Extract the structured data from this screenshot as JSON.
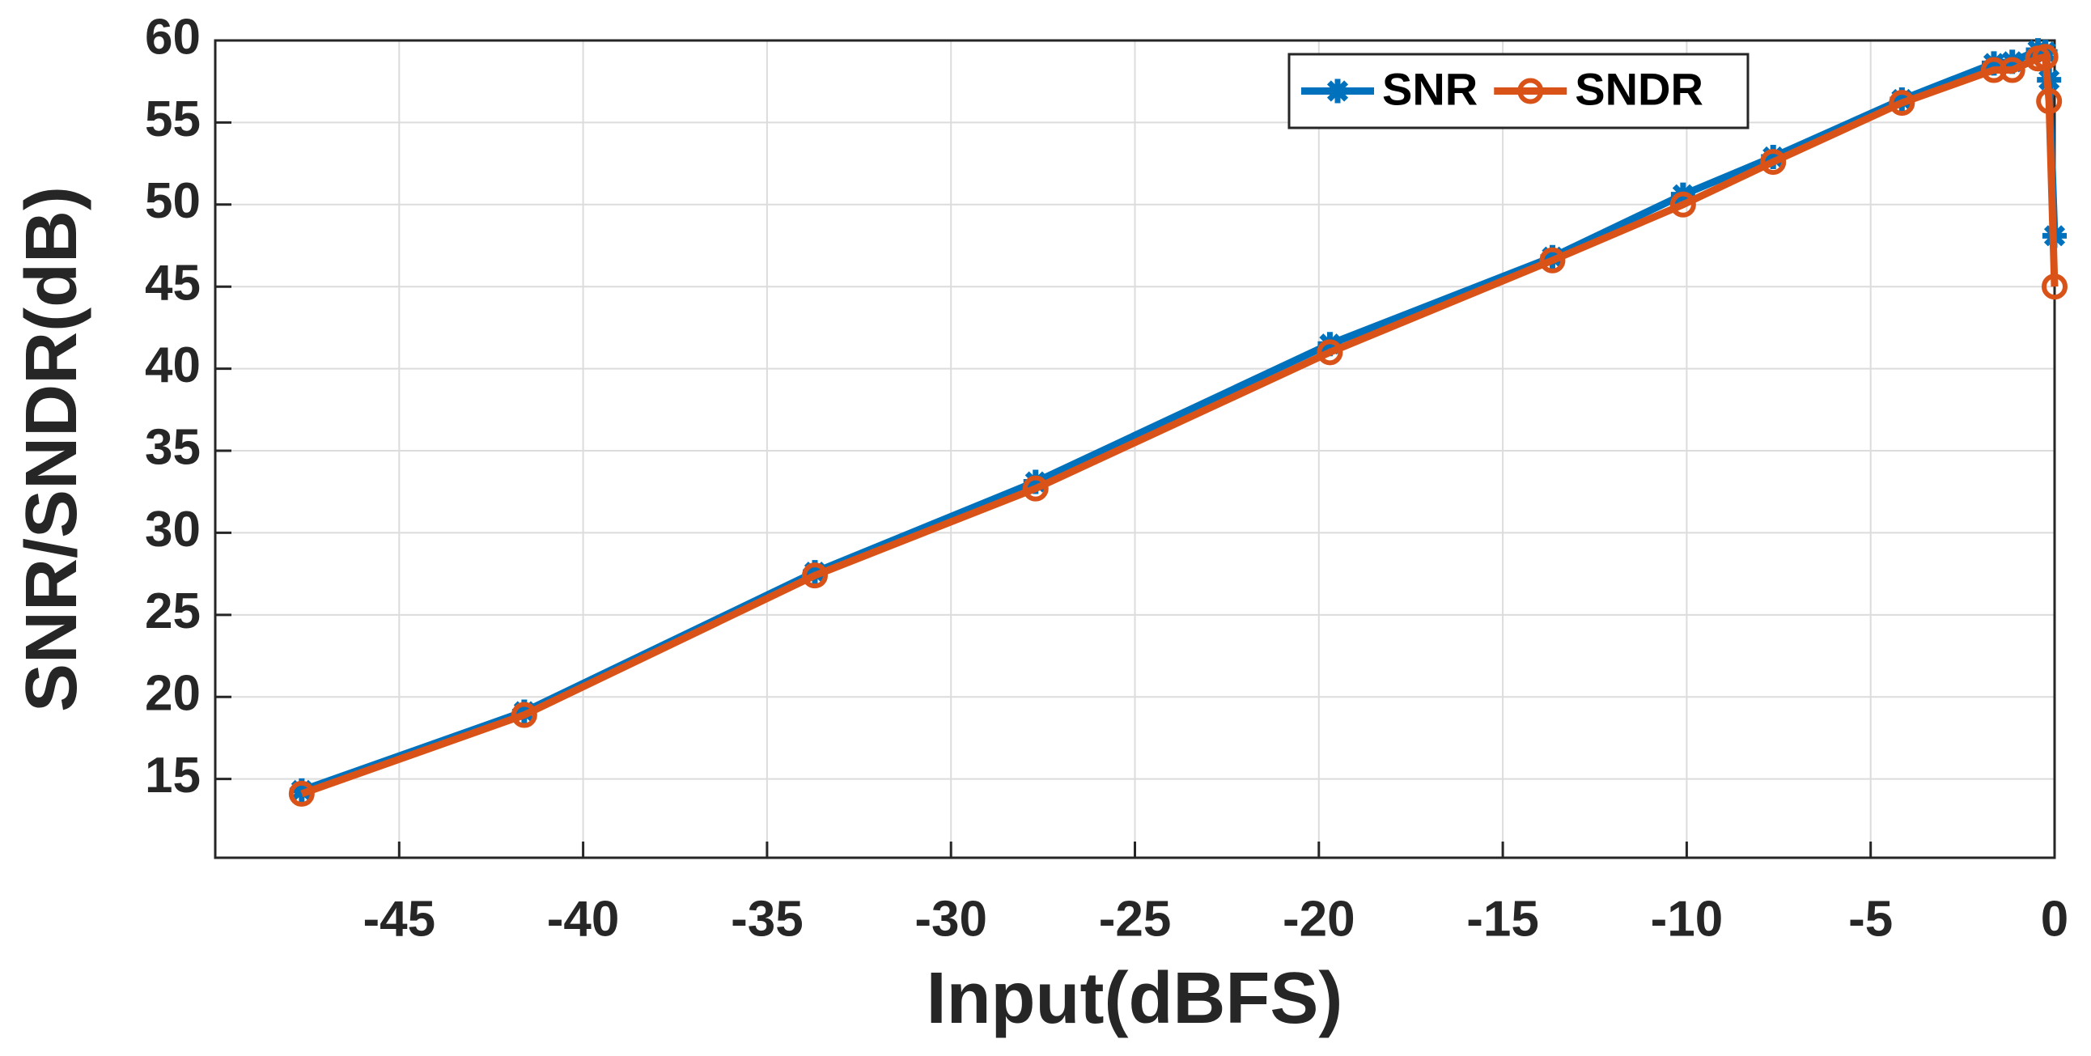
{
  "chart_data": {
    "type": "line",
    "xlabel": "Input(dBFS)",
    "ylabel": "SNR/SNDR(dB)",
    "x": [
      -47.65,
      -41.6,
      -33.7,
      -27.7,
      -19.7,
      -13.65,
      -10.1,
      -7.65,
      -4.15,
      -1.65,
      -1.15,
      -0.45,
      -0.25,
      -0.15,
      0
    ],
    "series": [
      {
        "name": "SNR",
        "color": "#0072BD",
        "marker": "asterisk",
        "values": [
          14.3,
          19.1,
          27.6,
          33.1,
          41.5,
          46.8,
          50.6,
          52.9,
          56.4,
          58.6,
          58.7,
          59.4,
          59.3,
          57.6,
          48.1
        ]
      },
      {
        "name": "SNDR",
        "color": "#D95319",
        "marker": "circle",
        "values": [
          14.1,
          18.9,
          27.4,
          32.7,
          41.0,
          46.6,
          50.0,
          52.6,
          56.2,
          58.2,
          58.2,
          58.9,
          59.0,
          56.3,
          45.0
        ]
      }
    ],
    "xlim": [
      -50,
      0
    ],
    "xticks": [
      -45,
      -40,
      -35,
      -30,
      -25,
      -20,
      -15,
      -10,
      -5,
      0
    ],
    "ylim": [
      10.2,
      60
    ],
    "yticks": [
      15,
      20,
      25,
      30,
      35,
      40,
      45,
      50,
      55,
      60
    ],
    "grid": true,
    "legend": "top-right"
  }
}
